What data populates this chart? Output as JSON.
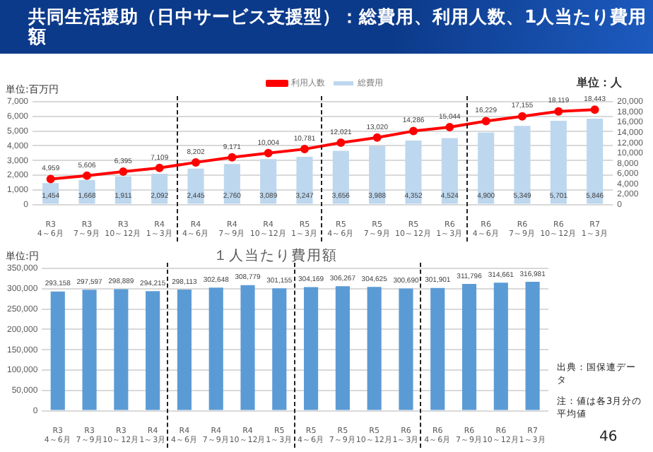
{
  "chart_data": [
    {
      "type": "bar",
      "title": "共同生活援助（日中サービス支援型）：総費用、利用人数、1人当たり費用額",
      "ylabel": "単位:百万円",
      "y2label": "単位：人",
      "categories": [
        "R3\n4～6月",
        "R3\n7～9月",
        "R3\n10～12月",
        "R4\n1～3月",
        "R4\n4～6月",
        "R4\n7～9月",
        "R4\n10～12月",
        "R5\n1～3月",
        "R5\n4～6月",
        "R5\n7～9月",
        "R5\n10～12月",
        "R6\n1～3月",
        "R6\n4～6月",
        "R6\n7～9月",
        "R6\n10～12月",
        "R7\n1～3月"
      ],
      "series": [
        {
          "name": "総費用",
          "type": "bar",
          "color": "#bdd7ee",
          "values": [
            1454,
            1668,
            1911,
            2092,
            2445,
            2760,
            3089,
            3247,
            3656,
            3988,
            4352,
            4524,
            4900,
            5349,
            5701,
            5846
          ],
          "value_labels": [
            "1,454",
            "1,668",
            "1,911",
            "2,092",
            "2,445",
            "2,760",
            "3,089",
            "3,247",
            "3,656",
            "3,988",
            "4,352",
            "4,524",
            "4,900",
            "5,349",
            "5,701",
            "5,846"
          ]
        },
        {
          "name": "利用人数",
          "type": "line",
          "axis": "y2",
          "color": "#ff0000",
          "values": [
            4959,
            5606,
            6395,
            7109,
            8202,
            9171,
            10004,
            10781,
            12021,
            13020,
            14286,
            15044,
            16229,
            17155,
            18119,
            18443
          ],
          "value_labels": [
            "4,959",
            "5,606",
            "6,395",
            "7,109",
            "8,202",
            "9,171",
            "10,004",
            "10,781",
            "12,021",
            "13,020",
            "14,286",
            "15,044",
            "16,229",
            "17,155",
            "18,119",
            "18,443"
          ]
        }
      ],
      "ylim": [
        0,
        7000
      ],
      "yticks": [
        0,
        {
          "value": 1000,
          "label": "1,000"
        },
        {
          "value": 2000,
          "label": "2,000"
        },
        {
          "value": 3000,
          "label": "3,000"
        },
        {
          "value": 4000,
          "label": "4,000"
        },
        {
          "value": 5000,
          "label": "5,000"
        },
        {
          "value": 6000,
          "label": "6,000"
        },
        {
          "value": 7000,
          "label": "7,000"
        }
      ],
      "y2lim": [
        0,
        20000
      ],
      "y2ticks": [
        0,
        {
          "value": 2000,
          "label": "2,000"
        },
        {
          "value": 4000,
          "label": "4,000"
        },
        {
          "value": 6000,
          "label": "6,000"
        },
        {
          "value": 8000,
          "label": "8,000"
        },
        {
          "value": 10000,
          "label": "10,000"
        },
        {
          "value": 12000,
          "label": "12,000"
        },
        {
          "value": 14000,
          "label": "14,000"
        },
        {
          "value": 16000,
          "label": "16,000"
        },
        {
          "value": 18000,
          "label": "18,000"
        },
        {
          "value": 20000,
          "label": "20,000"
        }
      ],
      "grid": "y",
      "legend": "top",
      "marker": "circle"
    },
    {
      "type": "bar",
      "title": "１人当たり費用額",
      "ylabel": "単位:円",
      "categories": [
        "R3\n4～6月",
        "R3\n7～9月",
        "R3\n10～12月",
        "R4\n1～3月",
        "R4\n4～6月",
        "R4\n7～9月",
        "R4\n10～12月",
        "R5\n1～3月",
        "R5\n4～6月",
        "R5\n7～9月",
        "R5\n10～12月",
        "R6\n1～3月",
        "R6\n4～6月",
        "R6\n7～9月",
        "R6\n10～12月",
        "R7\n1～3月"
      ],
      "values": [
        293158,
        297597,
        298889,
        294215,
        298113,
        302648,
        308779,
        301155,
        304169,
        306267,
        304625,
        300690,
        301901,
        311796,
        314661,
        316981
      ],
      "value_labels": [
        "293,158",
        "297,597",
        "298,889",
        "294,215",
        "298,113",
        "302,648",
        "308,779",
        "301,155",
        "304,169",
        "306,267",
        "304,625",
        "300,690",
        "301,901",
        "311,796",
        "314,661",
        "316,981"
      ],
      "color": "#5b9bd5",
      "ylim": [
        0,
        350000
      ],
      "yticks": [
        0,
        {
          "value": 50000,
          "label": "50,000"
        },
        {
          "value": 100000,
          "label": "100,000"
        },
        {
          "value": 150000,
          "label": "150,000"
        },
        {
          "value": 200000,
          "label": "200,000"
        },
        {
          "value": 250000,
          "label": "250,000"
        },
        {
          "value": 300000,
          "label": "300,000"
        },
        {
          "value": 350000,
          "label": "350,000"
        }
      ],
      "grid": "y",
      "annotations": [
        "出典：国保連データ",
        "注：値は各3月分の平均値",
        "46"
      ]
    }
  ]
}
